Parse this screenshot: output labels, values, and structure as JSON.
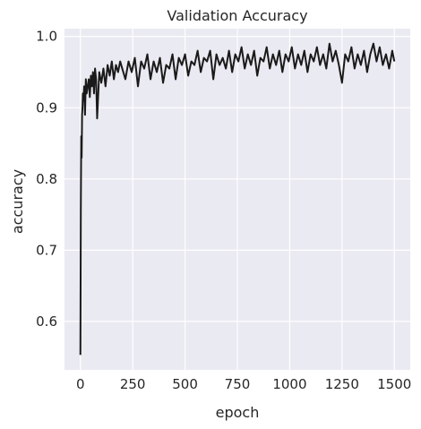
{
  "chart_data": {
    "type": "line",
    "title": "Validation Accuracy",
    "xlabel": "epoch",
    "ylabel": "accuracy",
    "xlim": [
      -76,
      1576
    ],
    "ylim": [
      0.532,
      1.011
    ],
    "xticks": [
      0,
      250,
      500,
      750,
      1000,
      1250,
      1500
    ],
    "yticks": [
      0.6,
      0.7,
      0.8,
      0.9,
      1.0
    ],
    "xtick_labels": [
      "0",
      "250",
      "500",
      "750",
      "1000",
      "1250",
      "1500"
    ],
    "ytick_labels": [
      "0.6",
      "0.7",
      "0.8",
      "0.9",
      "1.0"
    ],
    "grid": true,
    "background": "#eaeaf2",
    "line_color": "#1a1a1a",
    "series": [
      {
        "x": [
          0,
          2,
          4,
          6,
          8,
          10,
          12,
          15,
          18,
          22,
          26,
          30,
          35,
          40,
          45,
          50,
          55,
          60,
          65,
          70,
          75,
          80,
          90,
          100,
          110,
          120,
          130,
          140,
          150,
          160,
          170,
          180,
          190,
          200,
          215,
          230,
          245,
          260,
          275,
          290,
          305,
          320,
          335,
          350,
          365,
          380,
          395,
          410,
          425,
          440,
          455,
          470,
          485,
          500,
          515,
          530,
          545,
          560,
          575,
          590,
          605,
          620,
          635,
          650,
          665,
          680,
          695,
          710,
          725,
          740,
          755,
          770,
          785,
          800,
          815,
          830,
          845,
          860,
          875,
          890,
          905,
          920,
          935,
          950,
          965,
          980,
          995,
          1010,
          1025,
          1040,
          1055,
          1070,
          1085,
          1100,
          1115,
          1130,
          1145,
          1160,
          1175,
          1190,
          1205,
          1220,
          1235,
          1250,
          1265,
          1280,
          1295,
          1310,
          1325,
          1340,
          1355,
          1370,
          1385,
          1400,
          1415,
          1430,
          1445,
          1460,
          1475,
          1490,
          1500
        ],
        "y": [
          0.553,
          0.76,
          0.86,
          0.83,
          0.89,
          0.9,
          0.92,
          0.91,
          0.93,
          0.89,
          0.94,
          0.92,
          0.93,
          0.94,
          0.915,
          0.945,
          0.93,
          0.95,
          0.92,
          0.955,
          0.94,
          0.885,
          0.95,
          0.935,
          0.955,
          0.93,
          0.96,
          0.945,
          0.965,
          0.94,
          0.96,
          0.95,
          0.965,
          0.955,
          0.94,
          0.965,
          0.95,
          0.97,
          0.93,
          0.965,
          0.955,
          0.975,
          0.94,
          0.965,
          0.95,
          0.97,
          0.935,
          0.96,
          0.955,
          0.975,
          0.94,
          0.97,
          0.96,
          0.975,
          0.945,
          0.965,
          0.96,
          0.98,
          0.95,
          0.97,
          0.965,
          0.98,
          0.94,
          0.975,
          0.96,
          0.97,
          0.955,
          0.98,
          0.95,
          0.975,
          0.965,
          0.985,
          0.955,
          0.975,
          0.96,
          0.98,
          0.945,
          0.97,
          0.965,
          0.985,
          0.955,
          0.975,
          0.96,
          0.98,
          0.95,
          0.975,
          0.965,
          0.985,
          0.955,
          0.975,
          0.96,
          0.98,
          0.95,
          0.975,
          0.965,
          0.985,
          0.96,
          0.975,
          0.955,
          0.99,
          0.965,
          0.98,
          0.96,
          0.935,
          0.975,
          0.965,
          0.985,
          0.955,
          0.975,
          0.96,
          0.98,
          0.95,
          0.975,
          0.99,
          0.965,
          0.985,
          0.96,
          0.975,
          0.955,
          0.98,
          0.965
        ]
      }
    ]
  }
}
